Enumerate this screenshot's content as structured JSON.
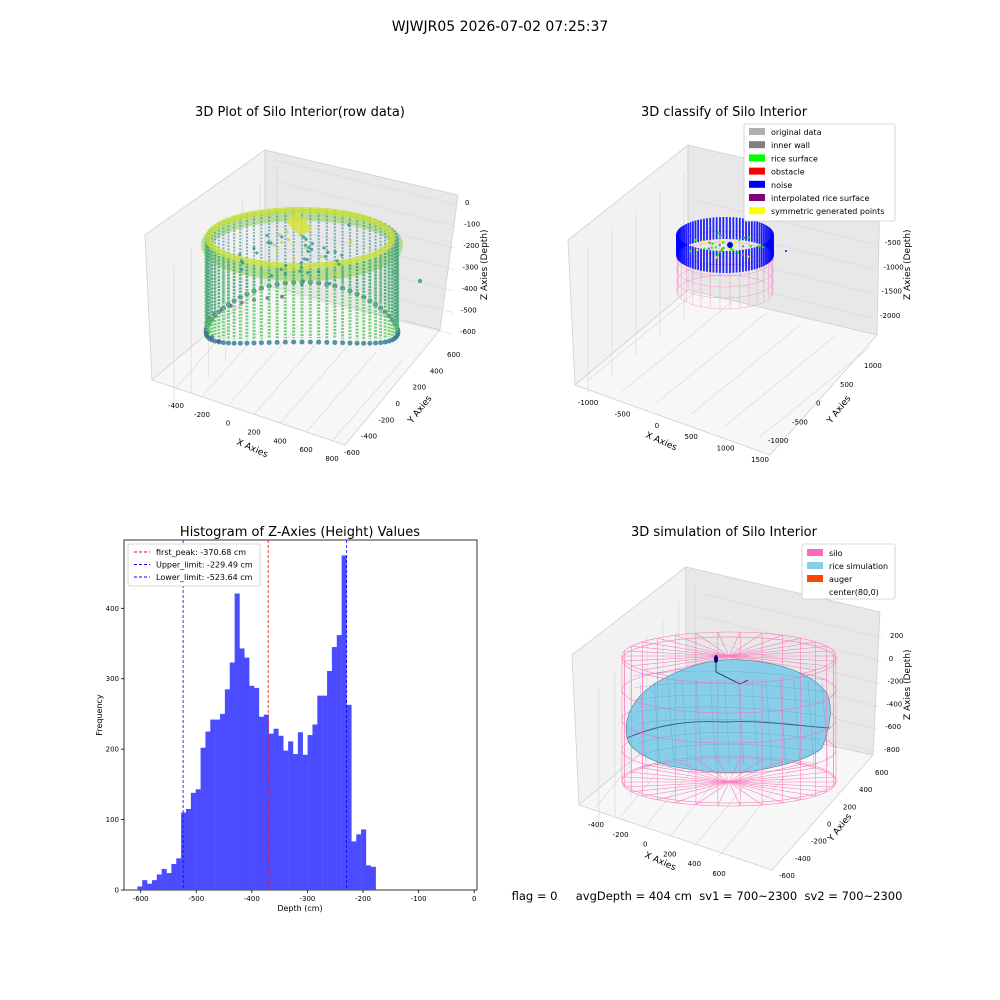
{
  "suptitle": "WJWJR05 2026-07-02 07:25:37",
  "footer": "flag = 0     avgDepth = 404 cm  sv1 = 700~2300  sv2 = 700~2300",
  "panels": {
    "p1": {
      "title": "3D Plot of Silo Interior(row data)",
      "xlabel": "X Axies",
      "ylabel": "Y Axies",
      "zlabel": "Z Axies (Depth)",
      "xticks": [
        "-400",
        "-200",
        "0",
        "200",
        "400",
        "600",
        "800"
      ],
      "yticks": [
        "-600",
        "-400",
        "-200",
        "0",
        "200",
        "400",
        "600"
      ],
      "zticks": [
        "0",
        "-100",
        "-200",
        "-300",
        "-400",
        "-500",
        "-600"
      ]
    },
    "p2": {
      "title": "3D classify of Silo Interior",
      "xlabel": "X Axies",
      "ylabel": "Y Axies",
      "zlabel": "Z Axies (Depth)",
      "xticks": [
        "-1000",
        "-500",
        "0",
        "500",
        "1000",
        "1500"
      ],
      "yticks": [
        "-1000",
        "-500",
        "0",
        "500",
        "1000"
      ],
      "zticks": [
        "-500",
        "-1000",
        "-1500",
        "-2000"
      ],
      "legend": [
        {
          "label": "original data",
          "color": "#b0b0b0"
        },
        {
          "label": "inner wall",
          "color": "#808080"
        },
        {
          "label": "rice surface",
          "color": "#00ff00"
        },
        {
          "label": "obstacle",
          "color": "#ff0000"
        },
        {
          "label": "noise",
          "color": "#0000ff"
        },
        {
          "label": "interpolated rice surface",
          "color": "#800080"
        },
        {
          "label": "symmetric generated points",
          "color": "#ffff00"
        }
      ]
    },
    "p4": {
      "title": "3D simulation of Silo Interior",
      "xlabel": "X Axies",
      "ylabel": "Y Axies",
      "zlabel": "Z Axies (Depth)",
      "xticks": [
        "-400",
        "-200",
        "0",
        "200",
        "400",
        "600"
      ],
      "yticks": [
        "-600",
        "-400",
        "-200",
        "0",
        "200",
        "400",
        "600"
      ],
      "zticks": [
        "200",
        "0",
        "-200",
        "-400",
        "-600",
        "-800"
      ],
      "legend": [
        {
          "label": "silo",
          "color": "#ff69b4"
        },
        {
          "label": "rice simulation",
          "color": "#87ceeb"
        },
        {
          "label": "auger",
          "color": "#ff4500"
        },
        {
          "label": "center(80,0)",
          "color": "#ffffff"
        }
      ]
    }
  },
  "chart_data": {
    "type": "bar",
    "title": "Histogram of Z-Axies (Height) Values",
    "xlabel": "Depth (cm)",
    "ylabel": "Frequency",
    "xlim": [
      -630,
      5
    ],
    "ylim": [
      0,
      497
    ],
    "xticks": [
      -600,
      -500,
      -400,
      -300,
      -200,
      -100,
      0
    ],
    "yticks": [
      0,
      100,
      200,
      300,
      400
    ],
    "bar_color": "#4b4bff",
    "bins_start": -606,
    "bin_width": 8.75,
    "values": [
      5,
      14,
      9,
      14,
      22,
      30,
      24,
      37,
      45,
      110,
      115,
      138,
      143,
      202,
      225,
      242,
      242,
      250,
      285,
      323,
      421,
      343,
      330,
      290,
      287,
      246,
      249,
      222,
      229,
      219,
      198,
      211,
      193,
      224,
      192,
      220,
      235,
      276,
      276,
      311,
      345,
      362,
      475,
      263,
      69,
      79,
      86,
      35,
      33
    ],
    "lines": [
      {
        "label": "first_peak: -370.68 cm",
        "x": -370.68,
        "color": "#ff0000"
      },
      {
        "label": "Upper_limit: -229.49 cm",
        "x": -229.49,
        "color": "#0000ff"
      },
      {
        "label": "Lower_limit: -523.64 cm",
        "x": -523.64,
        "color": "#0000ff"
      }
    ]
  }
}
